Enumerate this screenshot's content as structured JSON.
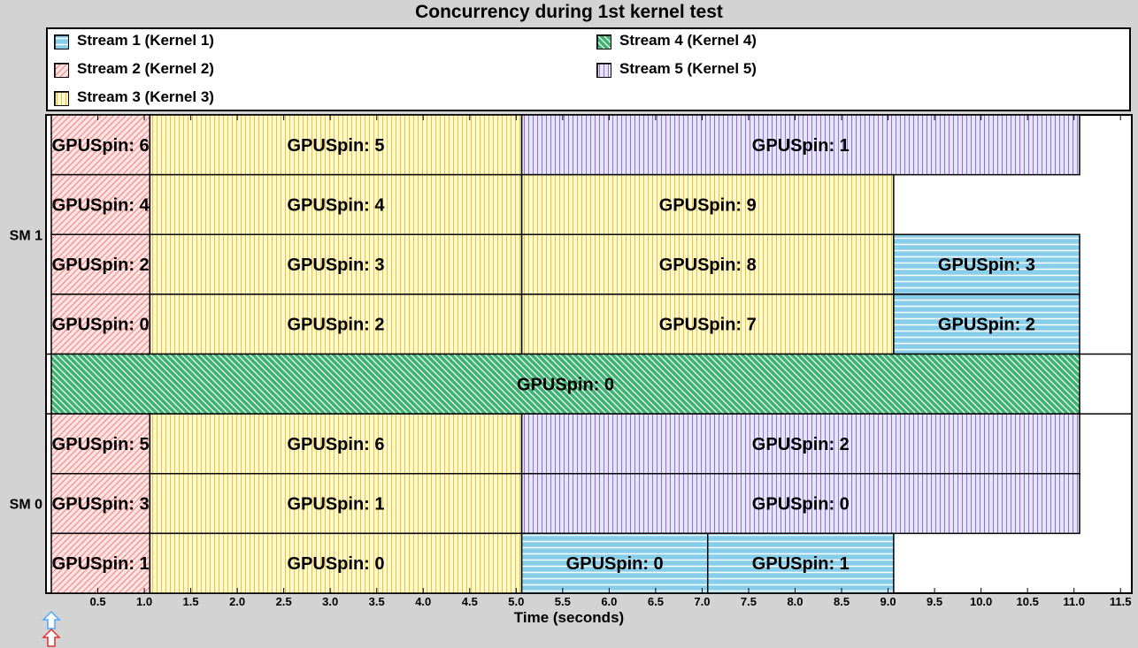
{
  "chart_data": {
    "type": "timeline",
    "title": "Concurrency during 1st kernel test",
    "xlabel": "Time (seconds)",
    "xlim": [
      0.0,
      11.6
    ],
    "xticks": [
      "0.5",
      "1.0",
      "1.5",
      "2.0",
      "2.5",
      "3.0",
      "3.5",
      "4.0",
      "4.5",
      "5.0",
      "5.5",
      "6.0",
      "6.5",
      "7.0",
      "7.5",
      "8.0",
      "8.5",
      "9.0",
      "9.5",
      "10.0",
      "10.5",
      "11.0",
      "11.5"
    ],
    "lanes": [
      {
        "label": "SM 1",
        "rows": 4
      },
      {
        "label": "",
        "rows": 1
      },
      {
        "label": "SM 0",
        "rows": 3
      }
    ],
    "legend": [
      {
        "label": "Stream 1 (Kernel 1)",
        "stream": 1
      },
      {
        "label": "Stream 2 (Kernel 2)",
        "stream": 2
      },
      {
        "label": "Stream 3 (Kernel 3)",
        "stream": 3
      },
      {
        "label": "Stream 4 (Kernel 4)",
        "stream": 4
      },
      {
        "label": "Stream 5 (Kernel 5)",
        "stream": 5
      }
    ],
    "streams": {
      "1": {
        "fill": "#87ceeb",
        "line": "#ffffff",
        "pattern": "horizontal"
      },
      "2": {
        "fill": "#ffe4e1",
        "line": "#f08080",
        "pattern": "diagonal-up"
      },
      "3": {
        "fill": "#fffacd",
        "line": "#f0c040",
        "pattern": "vertical"
      },
      "4": {
        "fill": "#3cb371",
        "line": "#ffffff",
        "pattern": "diagonal-down"
      },
      "5": {
        "fill": "#e6e6fa",
        "line": "#9370db",
        "pattern": "vertical"
      }
    },
    "blocks": [
      {
        "row": 0,
        "stream": 2,
        "start": 0.0,
        "end": 1.06,
        "label": "GPUSpin: 6"
      },
      {
        "row": 0,
        "stream": 3,
        "start": 1.06,
        "end": 5.06,
        "label": "GPUSpin: 5"
      },
      {
        "row": 0,
        "stream": 5,
        "start": 5.06,
        "end": 11.06,
        "label": "GPUSpin: 1"
      },
      {
        "row": 1,
        "stream": 2,
        "start": 0.0,
        "end": 1.06,
        "label": "GPUSpin: 4"
      },
      {
        "row": 1,
        "stream": 3,
        "start": 1.06,
        "end": 5.06,
        "label": "GPUSpin: 4"
      },
      {
        "row": 1,
        "stream": 3,
        "start": 5.06,
        "end": 9.06,
        "label": "GPUSpin: 9"
      },
      {
        "row": 2,
        "stream": 2,
        "start": 0.0,
        "end": 1.06,
        "label": "GPUSpin: 2"
      },
      {
        "row": 2,
        "stream": 3,
        "start": 1.06,
        "end": 5.06,
        "label": "GPUSpin: 3"
      },
      {
        "row": 2,
        "stream": 3,
        "start": 5.06,
        "end": 9.06,
        "label": "GPUSpin: 8"
      },
      {
        "row": 2,
        "stream": 1,
        "start": 9.06,
        "end": 11.06,
        "label": "GPUSpin: 3"
      },
      {
        "row": 3,
        "stream": 2,
        "start": 0.0,
        "end": 1.06,
        "label": "GPUSpin: 0"
      },
      {
        "row": 3,
        "stream": 3,
        "start": 1.06,
        "end": 5.06,
        "label": "GPUSpin: 2"
      },
      {
        "row": 3,
        "stream": 3,
        "start": 5.06,
        "end": 9.06,
        "label": "GPUSpin: 7"
      },
      {
        "row": 3,
        "stream": 1,
        "start": 9.06,
        "end": 11.06,
        "label": "GPUSpin: 2"
      },
      {
        "row": 4,
        "stream": 4,
        "start": 0.0,
        "end": 11.06,
        "label": "GPUSpin: 0"
      },
      {
        "row": 5,
        "stream": 2,
        "start": 0.0,
        "end": 1.06,
        "label": "GPUSpin: 5"
      },
      {
        "row": 5,
        "stream": 3,
        "start": 1.06,
        "end": 5.06,
        "label": "GPUSpin: 6"
      },
      {
        "row": 5,
        "stream": 5,
        "start": 5.06,
        "end": 11.06,
        "label": "GPUSpin: 2"
      },
      {
        "row": 6,
        "stream": 2,
        "start": 0.0,
        "end": 1.06,
        "label": "GPUSpin: 3"
      },
      {
        "row": 6,
        "stream": 3,
        "start": 1.06,
        "end": 5.06,
        "label": "GPUSpin: 1"
      },
      {
        "row": 6,
        "stream": 5,
        "start": 5.06,
        "end": 11.06,
        "label": "GPUSpin: 0"
      },
      {
        "row": 7,
        "stream": 2,
        "start": 0.0,
        "end": 1.06,
        "label": "GPUSpin: 1"
      },
      {
        "row": 7,
        "stream": 3,
        "start": 1.06,
        "end": 5.06,
        "label": "GPUSpin: 0"
      },
      {
        "row": 7,
        "stream": 1,
        "start": 5.06,
        "end": 7.06,
        "label": "GPUSpin: 0"
      },
      {
        "row": 7,
        "stream": 1,
        "start": 7.06,
        "end": 9.06,
        "label": "GPUSpin: 1"
      }
    ],
    "markers": [
      {
        "type": "arrow-up",
        "color": "#4da6ff",
        "x": 0.0
      },
      {
        "type": "arrow-up",
        "color": "#e03030",
        "x": 0.0
      }
    ]
  }
}
